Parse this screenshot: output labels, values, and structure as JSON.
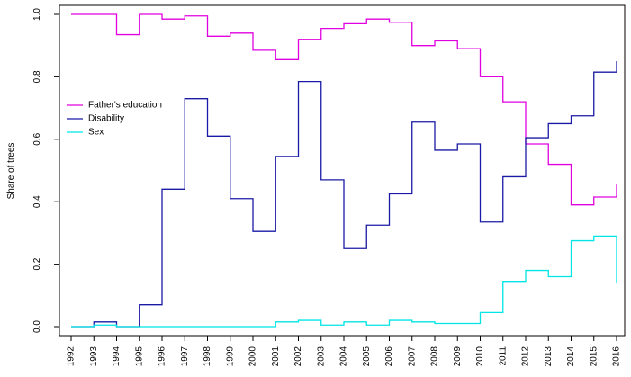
{
  "chart_data": {
    "type": "line",
    "step": true,
    "title": "",
    "xlabel": "",
    "ylabel": "Share of trees",
    "xlim": [
      1992,
      2016
    ],
    "ylim": [
      0,
      1
    ],
    "x": [
      1992,
      1993,
      1994,
      1995,
      1996,
      1997,
      1998,
      1999,
      2000,
      2001,
      2002,
      2003,
      2004,
      2005,
      2006,
      2007,
      2008,
      2009,
      2010,
      2011,
      2012,
      2013,
      2014,
      2015,
      2016
    ],
    "x_tick_labels": [
      "1992",
      "1993",
      "1994",
      "1995",
      "1996",
      "1997",
      "1998",
      "1999",
      "2000",
      "2001",
      "2002",
      "2003",
      "2004",
      "2005",
      "2006",
      "2007",
      "2008",
      "2009",
      "2010",
      "2011",
      "2012",
      "2013",
      "2014",
      "2015",
      "2016"
    ],
    "y_ticks": [
      0,
      0.2,
      0.4,
      0.6,
      0.8,
      1
    ],
    "y_tick_labels": [
      "0.0",
      "0.2",
      "0.4",
      "0.6",
      "0.8",
      "1.0"
    ],
    "grid": false,
    "legend_position": "left",
    "series": [
      {
        "name": "Father's education",
        "color": "#e000e0",
        "values": [
          1.0,
          1.0,
          0.935,
          1.0,
          0.985,
          0.995,
          0.93,
          0.94,
          0.885,
          0.855,
          0.92,
          0.955,
          0.97,
          0.985,
          0.975,
          0.9,
          0.915,
          0.89,
          0.8,
          0.72,
          0.585,
          0.52,
          0.39,
          0.415,
          0.455
        ]
      },
      {
        "name": "Disability",
        "color": "#1a1aa6",
        "values": [
          0.0,
          0.015,
          0.0,
          0.07,
          0.44,
          0.73,
          0.61,
          0.41,
          0.305,
          0.545,
          0.785,
          0.47,
          0.25,
          0.325,
          0.425,
          0.655,
          0.565,
          0.585,
          0.335,
          0.48,
          0.605,
          0.65,
          0.675,
          0.815,
          0.85
        ]
      },
      {
        "name": "Sex",
        "color": "#00e5e5",
        "values": [
          0.0,
          0.005,
          0.0,
          0.0,
          0.0,
          0.0,
          0.0,
          0.0,
          0.0,
          0.015,
          0.02,
          0.005,
          0.015,
          0.005,
          0.02,
          0.015,
          0.01,
          0.01,
          0.045,
          0.145,
          0.18,
          0.16,
          0.275,
          0.29,
          0.14
        ]
      }
    ]
  }
}
